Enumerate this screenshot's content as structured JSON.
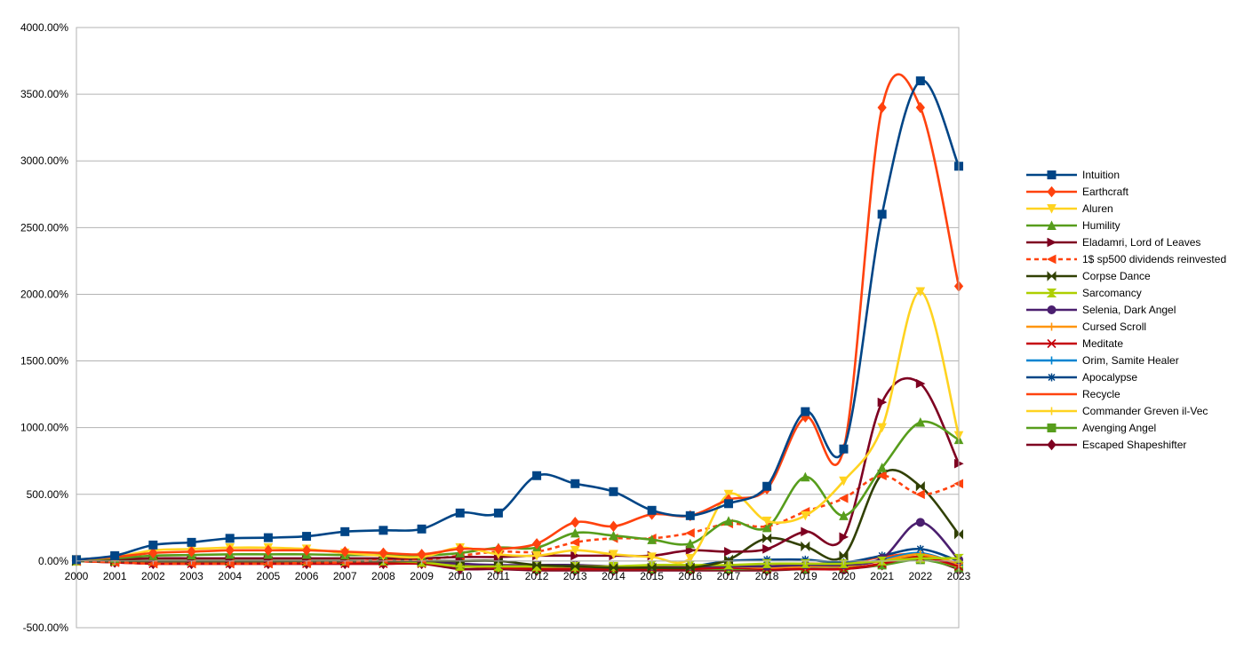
{
  "chart_data": {
    "type": "line",
    "x": [
      2000,
      2001,
      2002,
      2003,
      2004,
      2005,
      2006,
      2007,
      2008,
      2009,
      2010,
      2011,
      2012,
      2013,
      2014,
      2015,
      2016,
      2017,
      2018,
      2019,
      2020,
      2021,
      2022,
      2023
    ],
    "ylim": [
      -500,
      4000
    ],
    "yticks": [
      -500,
      0,
      500,
      1000,
      1500,
      2000,
      2500,
      3000,
      3500,
      4000
    ],
    "ytick_labels": [
      "-500.00%",
      "0.00%",
      "500.00%",
      "1000.00%",
      "1500.00%",
      "2000.00%",
      "2500.00%",
      "3000.00%",
      "3500.00%",
      "4000.00%"
    ],
    "grid": "horizontal",
    "legend_position": "right",
    "series": [
      {
        "name": "Intuition",
        "color": "#004586",
        "marker": "square",
        "dash": false,
        "values": [
          10,
          40,
          120,
          140,
          170,
          175,
          185,
          220,
          230,
          240,
          360,
          360,
          640,
          580,
          520,
          380,
          340,
          430,
          560,
          1120,
          840,
          2600,
          3600,
          2960
        ]
      },
      {
        "name": "Earthcraft",
        "color": "#ff420e",
        "marker": "diamond",
        "dash": false,
        "values": [
          10,
          30,
          60,
          70,
          80,
          80,
          80,
          70,
          60,
          50,
          90,
          90,
          130,
          290,
          260,
          350,
          340,
          460,
          540,
          1080,
          840,
          3400,
          3400,
          2060
        ]
      },
      {
        "name": "Aluren",
        "color": "#ffd320",
        "marker": "triangle-down",
        "dash": false,
        "values": [
          10,
          30,
          80,
          90,
          100,
          100,
          90,
          60,
          40,
          30,
          100,
          50,
          40,
          80,
          50,
          30,
          20,
          500,
          300,
          340,
          600,
          1000,
          2020,
          940
        ]
      },
      {
        "name": "Humility",
        "color": "#579d1c",
        "marker": "triangle-up",
        "dash": false,
        "values": [
          10,
          20,
          40,
          45,
          50,
          50,
          50,
          45,
          45,
          40,
          60,
          100,
          100,
          210,
          190,
          160,
          130,
          300,
          250,
          630,
          340,
          700,
          1040,
          910
        ]
      },
      {
        "name": "Eladamri, Lord of Leaves",
        "color": "#7e0021",
        "marker": "triangle-right",
        "dash": false,
        "values": [
          10,
          15,
          20,
          20,
          20,
          20,
          20,
          20,
          20,
          20,
          30,
          30,
          40,
          40,
          40,
          40,
          80,
          70,
          90,
          220,
          180,
          1190,
          1330,
          730
        ]
      },
      {
        "name": "1$ sp500 dividends reinvested",
        "color": "#ff420e",
        "marker": "triangle-left",
        "dash": true,
        "values": [
          0,
          -10,
          -20,
          -20,
          -20,
          -20,
          -15,
          -10,
          10,
          10,
          40,
          70,
          70,
          140,
          170,
          170,
          210,
          280,
          260,
          370,
          470,
          640,
          500,
          580
        ]
      },
      {
        "name": "Corpse Dance",
        "color": "#314004",
        "marker": "bowtie",
        "dash": false,
        "values": [
          0,
          0,
          0,
          0,
          0,
          0,
          0,
          0,
          0,
          0,
          0,
          0,
          -30,
          -40,
          -50,
          -50,
          -50,
          10,
          170,
          110,
          40,
          650,
          560,
          200
        ]
      },
      {
        "name": "Sarcomancy",
        "color": "#aecf00",
        "marker": "hourglass",
        "dash": false,
        "values": [
          0,
          0,
          0,
          0,
          0,
          0,
          0,
          0,
          0,
          -10,
          -40,
          -40,
          -40,
          -40,
          -40,
          -30,
          -30,
          -30,
          -20,
          -20,
          -20,
          0,
          20,
          20
        ]
      },
      {
        "name": "Selenia, Dark Angel",
        "color": "#4b1f6f",
        "marker": "circle",
        "dash": false,
        "values": [
          0,
          0,
          0,
          0,
          0,
          0,
          0,
          0,
          0,
          0,
          -20,
          -30,
          -30,
          -30,
          -40,
          -40,
          -40,
          -40,
          -40,
          -30,
          -30,
          20,
          290,
          10
        ]
      },
      {
        "name": "Cursed Scroll",
        "color": "#ff950e",
        "marker": "plus",
        "dash": false,
        "values": [
          0,
          0,
          0,
          0,
          0,
          0,
          0,
          0,
          0,
          0,
          -20,
          -40,
          -40,
          -40,
          -40,
          -40,
          -40,
          -40,
          -50,
          -40,
          -40,
          0,
          50,
          -20
        ]
      },
      {
        "name": "Meditate",
        "color": "#c5000b",
        "marker": "x",
        "dash": false,
        "values": [
          0,
          -10,
          -20,
          -20,
          -20,
          -20,
          -20,
          -20,
          -20,
          -20,
          -40,
          -50,
          -60,
          -60,
          -60,
          -60,
          -60,
          -50,
          -60,
          -60,
          -60,
          -20,
          30,
          -40
        ]
      },
      {
        "name": "Orim, Samite Healer",
        "color": "#0084d1",
        "marker": "plus",
        "dash": false,
        "values": [
          0,
          0,
          0,
          0,
          0,
          0,
          0,
          0,
          0,
          0,
          -20,
          -40,
          -40,
          -40,
          -40,
          -40,
          -40,
          -40,
          -40,
          -40,
          -40,
          10,
          60,
          -30
        ]
      },
      {
        "name": "Apocalypse",
        "color": "#004586",
        "marker": "star",
        "dash": false,
        "values": [
          0,
          0,
          0,
          0,
          0,
          0,
          0,
          0,
          0,
          0,
          -20,
          -40,
          -40,
          -40,
          -40,
          -40,
          -40,
          0,
          10,
          10,
          -10,
          40,
          90,
          0
        ]
      },
      {
        "name": "Recycle",
        "color": "#ff420e",
        "marker": "none",
        "dash": false,
        "values": [
          0,
          0,
          0,
          0,
          0,
          0,
          0,
          0,
          0,
          0,
          -30,
          -40,
          -40,
          -40,
          -40,
          -40,
          -50,
          -40,
          -40,
          -20,
          -20,
          30,
          50,
          -40
        ]
      },
      {
        "name": "Commander Greven il-Vec",
        "color": "#ffd320",
        "marker": "plus",
        "dash": false,
        "values": [
          0,
          0,
          0,
          0,
          0,
          0,
          0,
          0,
          0,
          0,
          -30,
          -50,
          -50,
          -50,
          -50,
          -50,
          -50,
          -50,
          -50,
          -40,
          -40,
          0,
          30,
          -40
        ]
      },
      {
        "name": "Avenging Angel",
        "color": "#579d1c",
        "marker": "square",
        "dash": false,
        "values": [
          0,
          0,
          0,
          0,
          0,
          0,
          0,
          0,
          0,
          0,
          -30,
          -50,
          -60,
          -60,
          -60,
          -60,
          -60,
          -60,
          -60,
          -60,
          -50,
          -30,
          10,
          -50
        ]
      },
      {
        "name": "Escaped Shapeshifter",
        "color": "#7e0021",
        "marker": "diamond",
        "dash": false,
        "values": [
          0,
          -10,
          -20,
          -20,
          -20,
          -20,
          -20,
          -20,
          -20,
          -20,
          -60,
          -60,
          -70,
          -70,
          -70,
          -70,
          -70,
          -70,
          -70,
          -60,
          -60,
          -30,
          20,
          -60
        ]
      }
    ]
  }
}
